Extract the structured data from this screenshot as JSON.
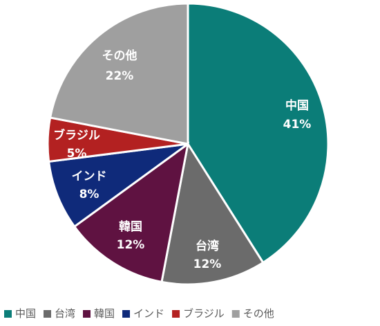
{
  "chart_data": {
    "type": "pie",
    "title": "",
    "slices": [
      {
        "label": "中国",
        "value": 41,
        "value_label": "41%",
        "color": "#0b7d78"
      },
      {
        "label": "台湾",
        "value": 12,
        "value_label": "12%",
        "color": "#6b6b6b"
      },
      {
        "label": "韓国",
        "value": 12,
        "value_label": "12%",
        "color": "#5f1241"
      },
      {
        "label": "インド",
        "value": 8,
        "value_label": "8%",
        "color": "#0f2a7a"
      },
      {
        "label": "ブラジル",
        "value": 5,
        "value_label": "5%",
        "color": "#b32121"
      },
      {
        "label": "その他",
        "value": 22,
        "value_label": "22%",
        "color": "#9f9f9f"
      }
    ],
    "legend": {
      "position": "bottom",
      "items": [
        "中国",
        "台湾",
        "韓国",
        "インド",
        "ブラジル",
        "その他"
      ]
    },
    "start_angle": "12 o'clock",
    "direction": "clockwise"
  }
}
